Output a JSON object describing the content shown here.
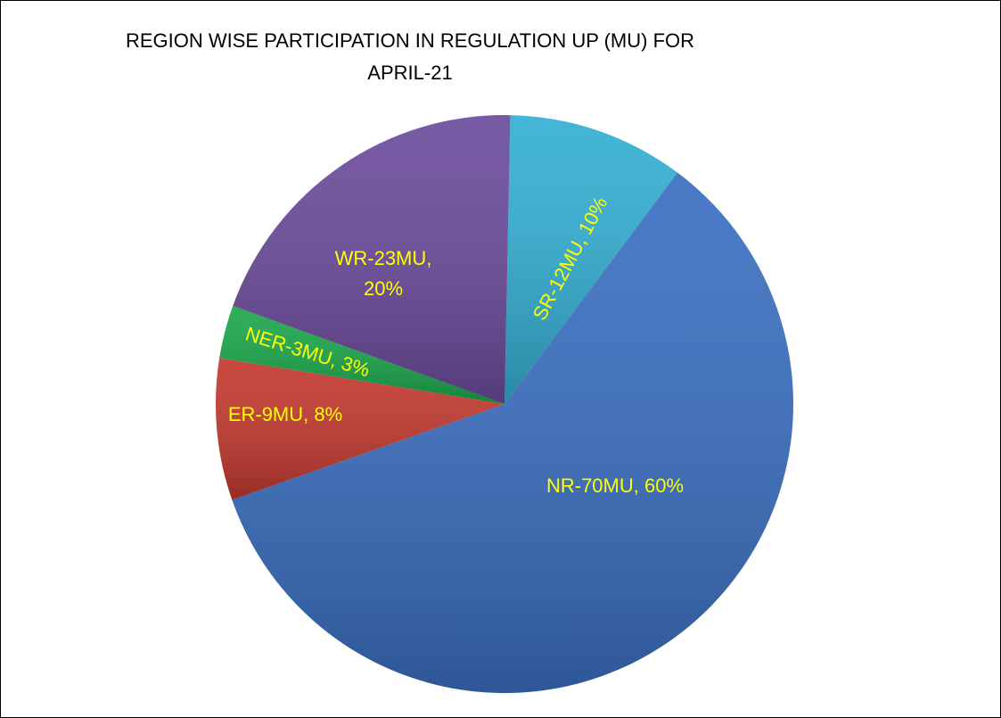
{
  "chart_data": {
    "type": "pie",
    "title": "REGION WISE PARTICIPATION IN REGULATION UP (MU) FOR APRIL-21",
    "values": [
      10,
      60,
      8,
      3,
      20
    ],
    "value_labels": [
      "SR-12MU, 10%",
      "NR-70MU, 60%",
      "ER-9MU, 8%",
      "NER-3MU, 3%",
      "WR-23MU, 20%"
    ],
    "colors": [
      "#33afd3",
      "#3a6fc1",
      "#c3392f",
      "#1ba74b",
      "#6b4b9c"
    ],
    "label_color": "#ffff00"
  }
}
